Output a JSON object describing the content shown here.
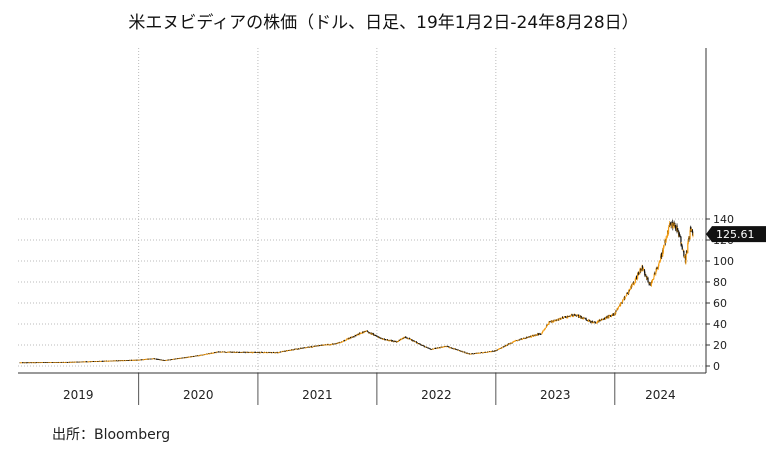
{
  "title": "米エヌビディアの株価（ドル、日足、19年1月2日-24年8月28日）",
  "source": "出所：Bloomberg",
  "colors": {
    "up": "#f39c12",
    "down": "#111111",
    "grid": "#bbbbbb",
    "badge": "#111111"
  },
  "chart_data": {
    "type": "candlestick",
    "title": "米エヌビディアの株価（ドル、日足、19年1月2日-24年8月28日）",
    "xlabel": "",
    "ylabel": "",
    "x_range": [
      "2019-01-02",
      "2024-08-28"
    ],
    "year_labels": [
      "2019",
      "2020",
      "2021",
      "2022",
      "2023",
      "2024"
    ],
    "y_ticks": [
      0,
      20,
      40,
      60,
      80,
      100,
      120,
      140
    ],
    "ylim": [
      0,
      145
    ],
    "y_axis_side": "right",
    "grid": true,
    "last_value": "125.61",
    "approx_close_series": [
      {
        "date": "2019-01-02",
        "value": 3.4
      },
      {
        "date": "2019-06-01",
        "value": 3.8
      },
      {
        "date": "2019-12-31",
        "value": 5.9
      },
      {
        "date": "2020-02-15",
        "value": 7.2
      },
      {
        "date": "2020-03-20",
        "value": 5.5
      },
      {
        "date": "2020-07-01",
        "value": 10.0
      },
      {
        "date": "2020-09-01",
        "value": 13.5
      },
      {
        "date": "2020-12-31",
        "value": 13.1
      },
      {
        "date": "2021-03-01",
        "value": 13.0
      },
      {
        "date": "2021-06-01",
        "value": 18.0
      },
      {
        "date": "2021-09-01",
        "value": 21.5
      },
      {
        "date": "2021-11-29",
        "value": 33.5
      },
      {
        "date": "2022-01-15",
        "value": 26.0
      },
      {
        "date": "2022-03-01",
        "value": 23.0
      },
      {
        "date": "2022-03-29",
        "value": 27.5
      },
      {
        "date": "2022-06-15",
        "value": 16.0
      },
      {
        "date": "2022-08-01",
        "value": 19.0
      },
      {
        "date": "2022-10-13",
        "value": 11.5
      },
      {
        "date": "2022-12-31",
        "value": 14.6
      },
      {
        "date": "2023-03-01",
        "value": 24.0
      },
      {
        "date": "2023-05-20",
        "value": 31.0
      },
      {
        "date": "2023-06-15",
        "value": 42.0
      },
      {
        "date": "2023-08-30",
        "value": 49.0
      },
      {
        "date": "2023-10-30",
        "value": 41.0
      },
      {
        "date": "2023-12-31",
        "value": 49.5
      },
      {
        "date": "2024-02-15",
        "value": 72.0
      },
      {
        "date": "2024-03-25",
        "value": 94.0
      },
      {
        "date": "2024-04-19",
        "value": 76.0
      },
      {
        "date": "2024-05-24",
        "value": 106.0
      },
      {
        "date": "2024-06-18",
        "value": 135.5
      },
      {
        "date": "2024-07-10",
        "value": 131.0
      },
      {
        "date": "2024-08-05",
        "value": 100.0
      },
      {
        "date": "2024-08-19",
        "value": 130.0
      },
      {
        "date": "2024-08-28",
        "value": 125.6
      }
    ]
  }
}
